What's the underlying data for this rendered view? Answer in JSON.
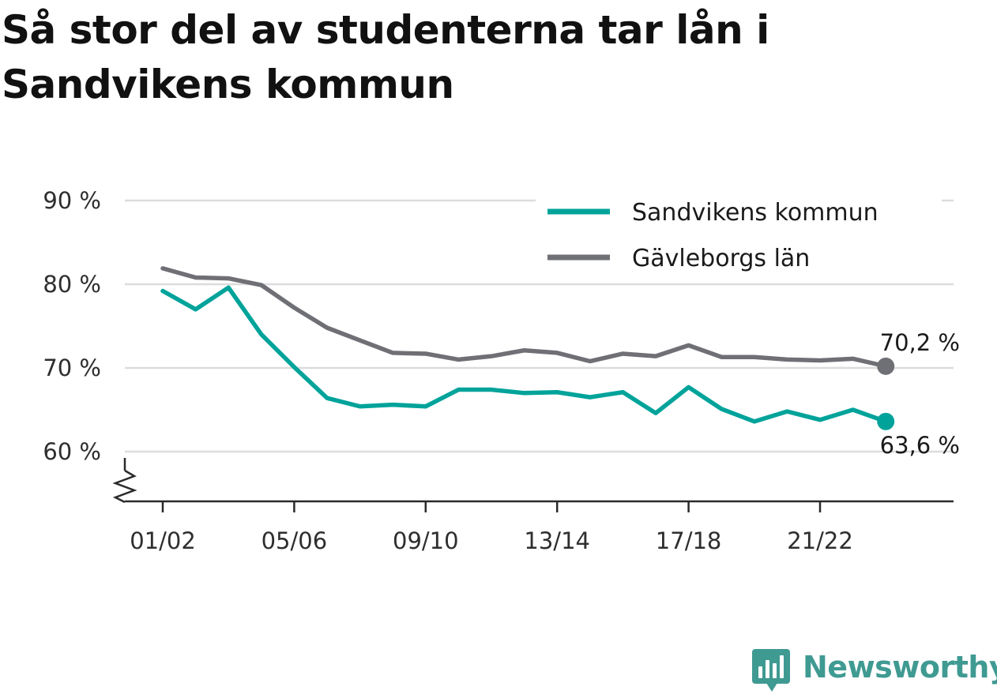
{
  "title": "Så stor del av studenterna tar lån i Sandvikens kommun",
  "chart_data": {
    "type": "line",
    "title": "Så stor del av studenterna tar lån i Sandvikens kommun",
    "xlabel": "",
    "ylabel": "",
    "x": [
      "01/02",
      "02/03",
      "03/04",
      "04/05",
      "05/06",
      "06/07",
      "07/08",
      "08/09",
      "09/10",
      "10/11",
      "11/12",
      "12/13",
      "13/14",
      "14/15",
      "15/16",
      "16/17",
      "17/18",
      "18/19",
      "19/20",
      "20/21",
      "21/22",
      "22/23",
      "23/24"
    ],
    "x_tick_labels": [
      "01/02",
      "05/06",
      "09/10",
      "13/14",
      "17/18",
      "21/22"
    ],
    "y_tick_labels": [
      "60 %",
      "70 %",
      "80 %",
      "90 %"
    ],
    "y_ticks": [
      60,
      70,
      80,
      90
    ],
    "ylim": [
      54,
      90
    ],
    "y_axis_break": true,
    "grid": true,
    "legend_position": "top-right",
    "series": [
      {
        "name": "Sandvikens kommun",
        "color": "#00a39a",
        "values": [
          79.2,
          77.0,
          79.6,
          74.0,
          70.1,
          66.4,
          65.4,
          65.6,
          65.4,
          67.4,
          67.4,
          67.0,
          67.1,
          66.5,
          67.1,
          64.6,
          67.7,
          65.1,
          63.6,
          64.8,
          63.8,
          65.0,
          63.6
        ],
        "end_label": "63,6 %"
      },
      {
        "name": "Gävleborgs län",
        "color": "#6f6f76",
        "values": [
          81.9,
          80.8,
          80.7,
          79.9,
          77.2,
          74.8,
          73.3,
          71.8,
          71.7,
          71.0,
          71.4,
          72.1,
          71.8,
          70.8,
          71.7,
          71.4,
          72.7,
          71.3,
          71.3,
          71.0,
          70.9,
          71.1,
          70.2
        ],
        "end_label": "70,2 %"
      }
    ]
  },
  "brand": {
    "name": "Newsworthy",
    "logo_icon": "bar-chart-speech-bubble-icon",
    "color": "#3f9a92"
  }
}
